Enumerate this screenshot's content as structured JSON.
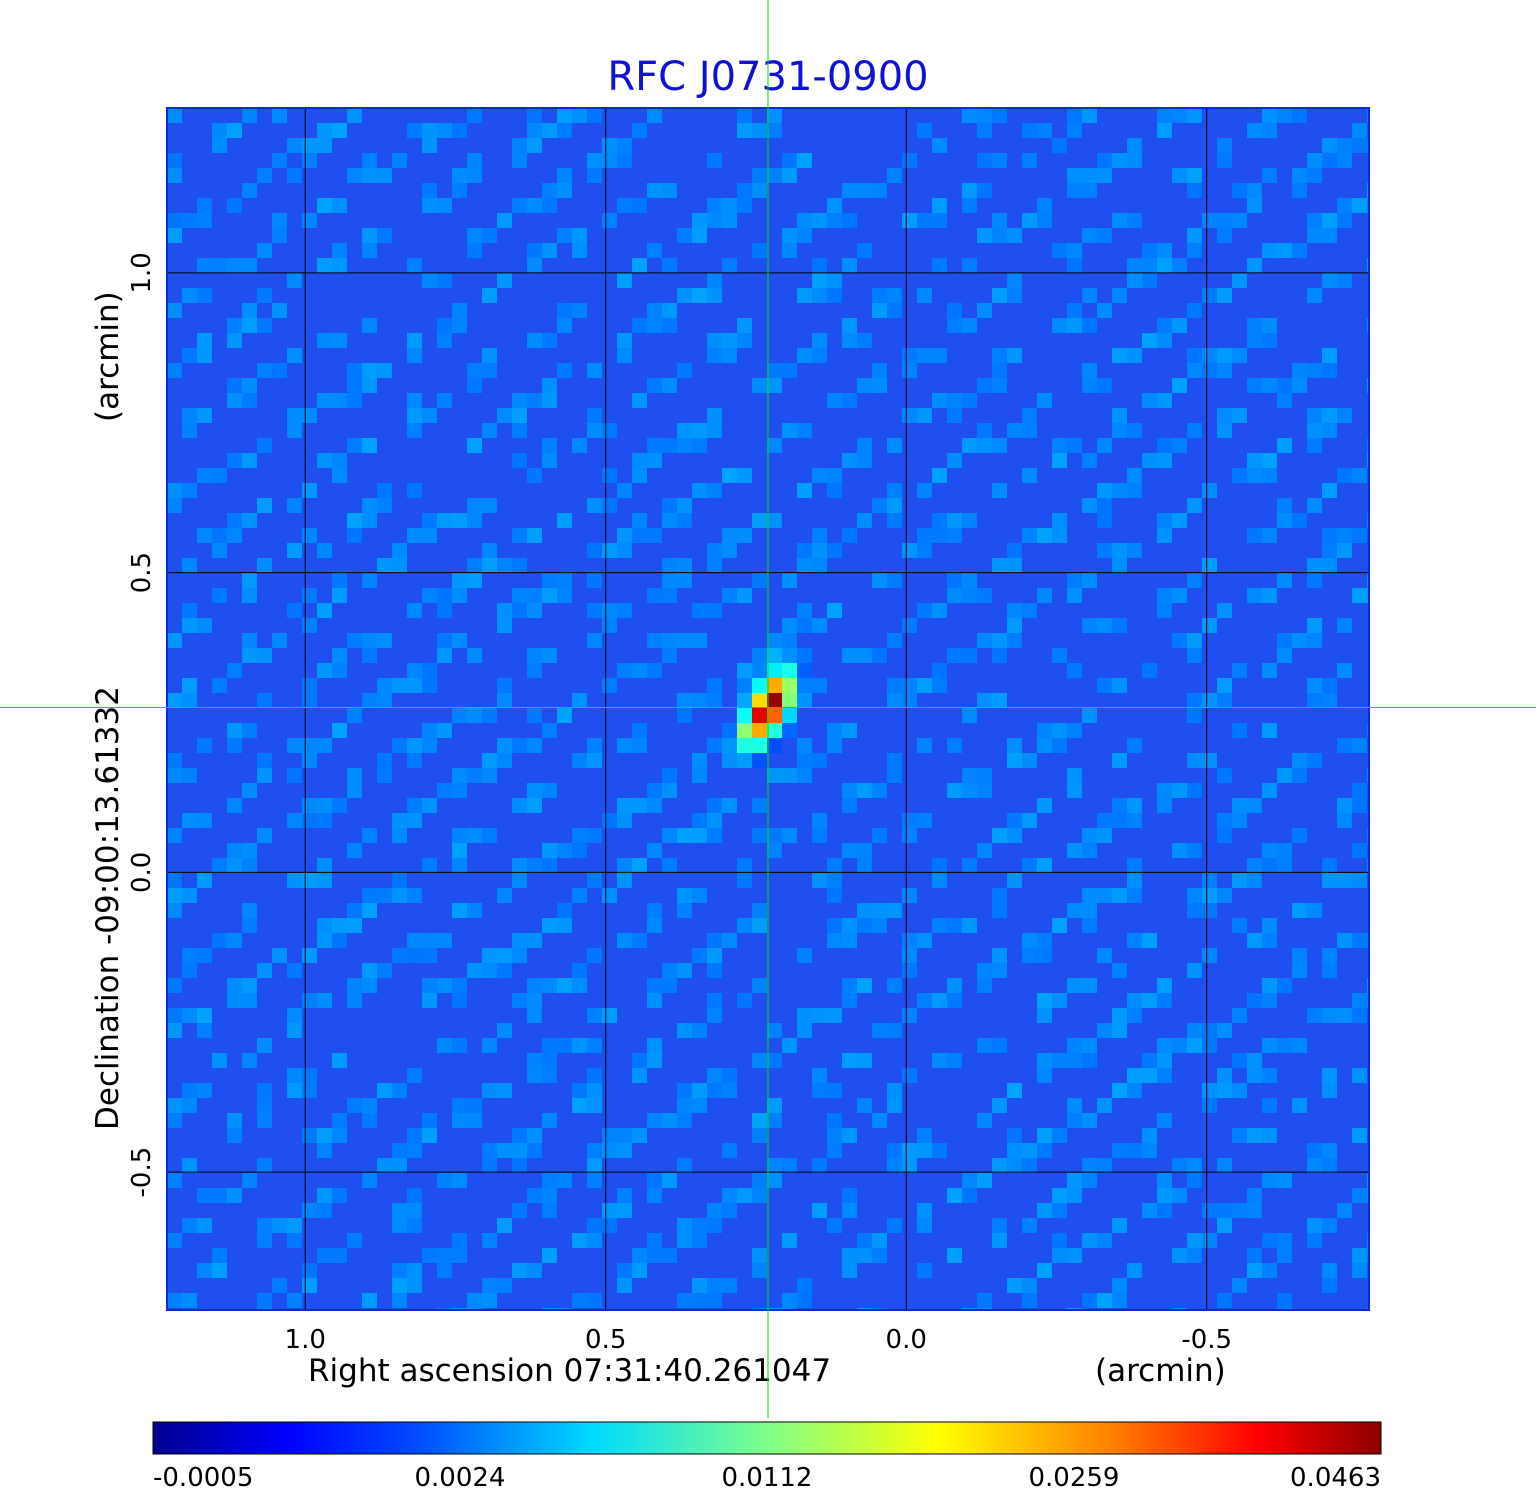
{
  "chart_data": {
    "type": "heatmap",
    "title": "RFC J0731-0900",
    "xlabel": "Right ascension  07:31:40.261047",
    "xunit": "(arcmin)",
    "ylabel": "Declination  -09:00:13.61332",
    "yunit": "(arcmin)",
    "x_ticks": [
      "1.0",
      "0.5",
      "0.0",
      "-0.5"
    ],
    "y_ticks": [
      "1.0",
      "0.5",
      "0.0",
      "-0.5"
    ],
    "x_tick_values": [
      1.0,
      0.5,
      0.0,
      -0.5
    ],
    "y_tick_values": [
      1.0,
      0.5,
      0.0,
      -0.5
    ],
    "xlim": [
      1.23,
      -0.77
    ],
    "ylim": [
      -0.73,
      1.275
    ],
    "grid": true,
    "crosshair": {
      "x": 0.23,
      "y": 0.275,
      "color": "#00dd00"
    },
    "source_peak": {
      "x": 0.23,
      "y": 0.275,
      "value": 0.0463
    },
    "colormap": "jet",
    "colorbar": {
      "position": "bottom",
      "tick_labels": [
        "-0.0005",
        "0.0024",
        "0.0112",
        "0.0259",
        "0.0463"
      ],
      "range": [
        -0.0005,
        0.0463
      ]
    },
    "colors": {
      "title": "#1010d8",
      "background_map": "#1f4fef",
      "crosshair": "#00dd00",
      "grid": "#000000"
    }
  }
}
